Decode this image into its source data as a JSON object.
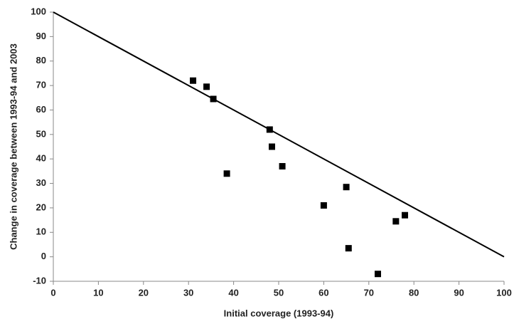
{
  "chart_data": {
    "type": "scatter",
    "x_label": "Initial coverage (1993-94)",
    "y_label": "Change in coverage between 1993-94 and 2003",
    "series": [
      {
        "color": "#000000",
        "x": [
          31,
          34,
          35.5,
          38.5,
          48,
          48.5,
          50.8,
          60,
          65,
          65.5,
          72,
          76,
          78
        ],
        "values": [
          72,
          69.5,
          64.5,
          34,
          52,
          45,
          37,
          21,
          28.5,
          3.5,
          -7,
          14.5,
          17
        ]
      }
    ],
    "line": {
      "color": "#000000",
      "x": [
        0,
        100
      ],
      "values": [
        100,
        0
      ]
    },
    "xlim": [
      0,
      100
    ],
    "xticks": [
      0,
      10,
      20,
      30,
      40,
      50,
      60,
      70,
      80,
      90,
      100
    ],
    "ylim": [
      -10,
      100
    ],
    "yticks": [
      -10,
      0,
      10,
      20,
      30,
      40,
      50,
      60,
      70,
      80,
      90,
      100
    ]
  }
}
